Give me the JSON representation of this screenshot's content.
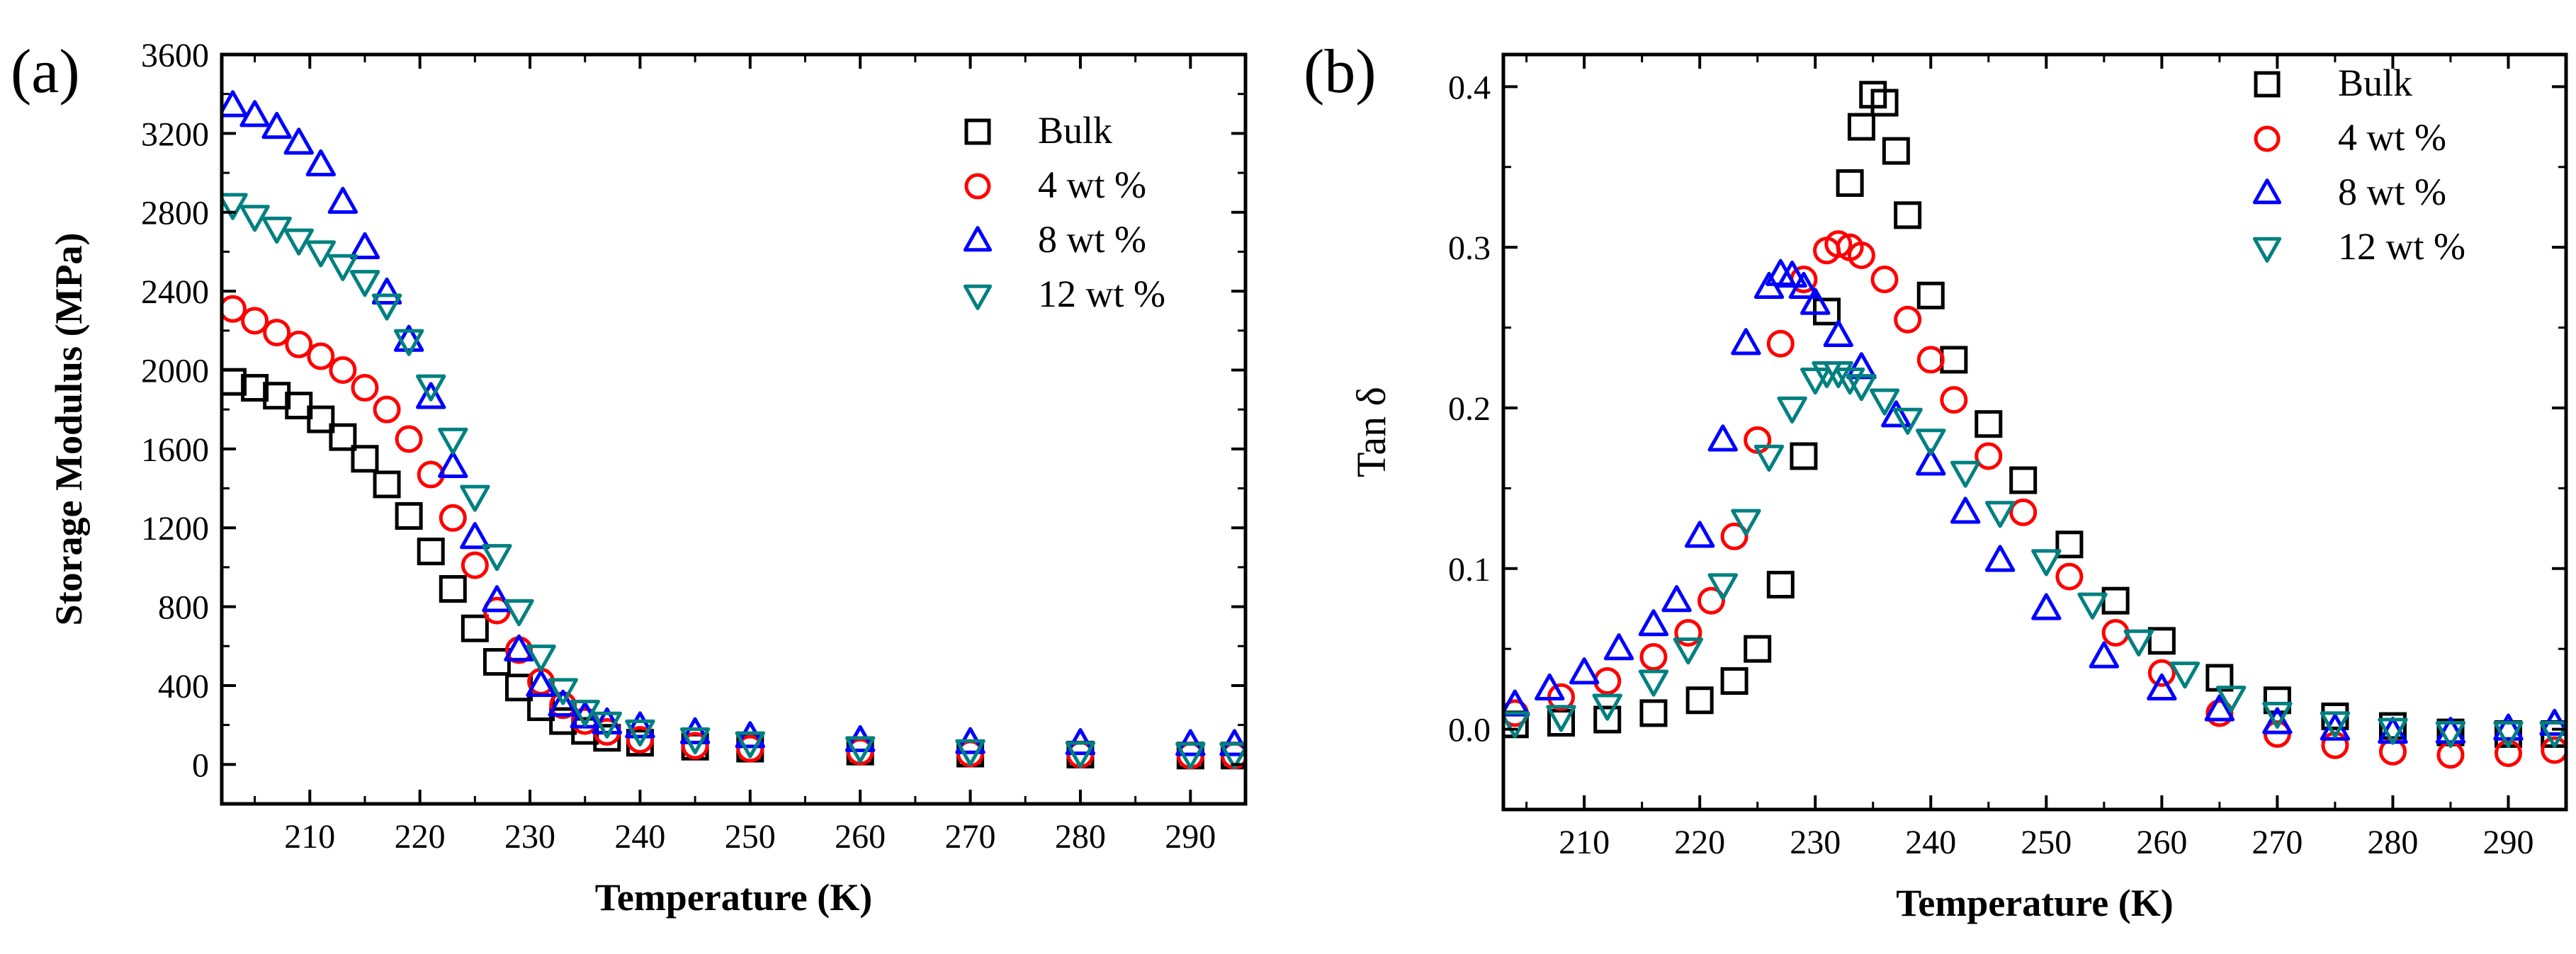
{
  "chart_data": [
    {
      "type": "scatter",
      "panel_label": "(a)",
      "xlabel": "Temperature  (K)",
      "ylabel": "Storage Modulus  (MPa)",
      "xlim": [
        202,
        295
      ],
      "ylim": [
        -200,
        3600
      ],
      "xticks": [
        210,
        220,
        230,
        240,
        250,
        260,
        270,
        280,
        290
      ],
      "yticks": [
        0,
        400,
        800,
        1200,
        1600,
        2000,
        2400,
        2800,
        3200,
        3600
      ],
      "legend_position": "top-right",
      "grid": false,
      "series": [
        {
          "name": "Bulk",
          "marker": "square",
          "color": "#000000",
          "x": [
            203,
            205,
            207,
            209,
            211,
            213,
            215,
            217,
            219,
            221,
            223,
            225,
            227,
            229,
            231,
            233,
            235,
            237,
            240,
            245,
            250,
            260,
            270,
            280,
            290,
            294
          ],
          "y": [
            1940,
            1910,
            1870,
            1820,
            1750,
            1660,
            1550,
            1420,
            1260,
            1080,
            890,
            690,
            520,
            390,
            290,
            220,
            170,
            135,
            110,
            90,
            80,
            65,
            55,
            50,
            45,
            45
          ]
        },
        {
          "name": "4 wt %",
          "marker": "circle",
          "color": "#ff0000",
          "x": [
            203,
            205,
            207,
            209,
            211,
            213,
            215,
            217,
            219,
            221,
            223,
            225,
            227,
            229,
            231,
            233,
            235,
            237,
            240,
            245,
            250,
            260,
            270,
            280,
            290,
            294
          ],
          "y": [
            2310,
            2250,
            2190,
            2130,
            2070,
            2000,
            1910,
            1800,
            1650,
            1470,
            1250,
            1010,
            780,
            580,
            420,
            300,
            220,
            165,
            125,
            95,
            80,
            65,
            55,
            50,
            45,
            45
          ]
        },
        {
          "name": "8 wt %",
          "marker": "triangle-up",
          "color": "#0000ff",
          "x": [
            203,
            205,
            207,
            209,
            211,
            213,
            215,
            217,
            219,
            221,
            223,
            225,
            227,
            229,
            231,
            233,
            235,
            237,
            240,
            245,
            250,
            260,
            270,
            280,
            290,
            294
          ],
          "y": [
            3340,
            3290,
            3230,
            3150,
            3040,
            2850,
            2620,
            2390,
            2150,
            1860,
            1510,
            1150,
            830,
            580,
            400,
            300,
            240,
            210,
            190,
            160,
            140,
            120,
            110,
            105,
            100,
            100
          ]
        },
        {
          "name": "12 wt %",
          "marker": "triangle-down",
          "color": "#008080",
          "x": [
            203,
            205,
            207,
            209,
            211,
            213,
            215,
            217,
            219,
            221,
            223,
            225,
            227,
            229,
            231,
            233,
            235,
            237,
            240,
            245,
            250,
            260,
            270,
            280,
            290,
            294
          ],
          "y": [
            2840,
            2780,
            2720,
            2660,
            2600,
            2530,
            2450,
            2330,
            2150,
            1920,
            1650,
            1360,
            1060,
            780,
            550,
            380,
            270,
            210,
            170,
            130,
            110,
            85,
            70,
            60,
            55,
            55
          ]
        }
      ]
    },
    {
      "type": "scatter",
      "panel_label": "(b)",
      "xlabel": "Temperature  (K)",
      "ylabel": "Tan δ",
      "xlim": [
        203,
        295
      ],
      "ylim": [
        -0.05,
        0.42
      ],
      "xticks": [
        210,
        220,
        230,
        240,
        250,
        260,
        270,
        280,
        290
      ],
      "yticks": [
        "0.0",
        "0.1",
        "0.2",
        "0.3",
        "0.4"
      ],
      "legend_position": "top-right",
      "grid": false,
      "series": [
        {
          "name": "Bulk",
          "marker": "square",
          "color": "#000000",
          "x": [
            204,
            208,
            212,
            216,
            220,
            223,
            225,
            227,
            229,
            231,
            233,
            234,
            235,
            236,
            237,
            238,
            240,
            242,
            245,
            248,
            252,
            256,
            260,
            265,
            270,
            275,
            280,
            285,
            290,
            294
          ],
          "y": [
            0.003,
            0.004,
            0.006,
            0.01,
            0.018,
            0.03,
            0.05,
            0.09,
            0.17,
            0.26,
            0.34,
            0.375,
            0.395,
            0.39,
            0.36,
            0.32,
            0.27,
            0.23,
            0.19,
            0.155,
            0.115,
            0.08,
            0.055,
            0.032,
            0.018,
            0.008,
            0.002,
            -0.002,
            -0.003,
            -0.003
          ]
        },
        {
          "name": "4 wt %",
          "marker": "circle",
          "color": "#ff0000",
          "x": [
            204,
            208,
            212,
            216,
            219,
            221,
            223,
            225,
            227,
            229,
            231,
            232,
            233,
            234,
            236,
            238,
            240,
            242,
            245,
            248,
            252,
            256,
            260,
            265,
            270,
            275,
            280,
            285,
            290,
            294
          ],
          "y": [
            0.01,
            0.02,
            0.03,
            0.045,
            0.06,
            0.08,
            0.12,
            0.18,
            0.24,
            0.28,
            0.298,
            0.302,
            0.3,
            0.295,
            0.28,
            0.255,
            0.23,
            0.205,
            0.17,
            0.135,
            0.095,
            0.06,
            0.035,
            0.01,
            -0.003,
            -0.01,
            -0.014,
            -0.016,
            -0.015,
            -0.013
          ]
        },
        {
          "name": "8 wt %",
          "marker": "triangle-up",
          "color": "#0000ff",
          "x": [
            204,
            207,
            210,
            213,
            216,
            218,
            220,
            222,
            224,
            226,
            227,
            228,
            229,
            230,
            232,
            234,
            237,
            240,
            243,
            246,
            250,
            255,
            260,
            265,
            270,
            275,
            280,
            285,
            290,
            294
          ],
          "y": [
            0.015,
            0.025,
            0.035,
            0.05,
            0.065,
            0.08,
            0.12,
            0.18,
            0.24,
            0.275,
            0.283,
            0.282,
            0.275,
            0.265,
            0.245,
            0.225,
            0.195,
            0.165,
            0.135,
            0.105,
            0.075,
            0.045,
            0.025,
            0.012,
            0.004,
            0.0,
            -0.002,
            -0.002,
            0.0,
            0.003
          ]
        },
        {
          "name": "12 wt %",
          "marker": "triangle-down",
          "color": "#008080",
          "x": [
            204,
            208,
            212,
            216,
            219,
            222,
            224,
            226,
            228,
            230,
            231,
            232,
            233,
            234,
            236,
            238,
            240,
            243,
            246,
            250,
            254,
            258,
            262,
            266,
            270,
            275,
            280,
            285,
            290,
            294
          ],
          "y": [
            0.004,
            0.008,
            0.015,
            0.03,
            0.05,
            0.09,
            0.13,
            0.17,
            0.2,
            0.218,
            0.222,
            0.222,
            0.218,
            0.214,
            0.205,
            0.193,
            0.18,
            0.16,
            0.135,
            0.105,
            0.078,
            0.055,
            0.035,
            0.02,
            0.01,
            0.004,
            0.0,
            -0.002,
            -0.002,
            -0.002
          ]
        }
      ]
    }
  ]
}
